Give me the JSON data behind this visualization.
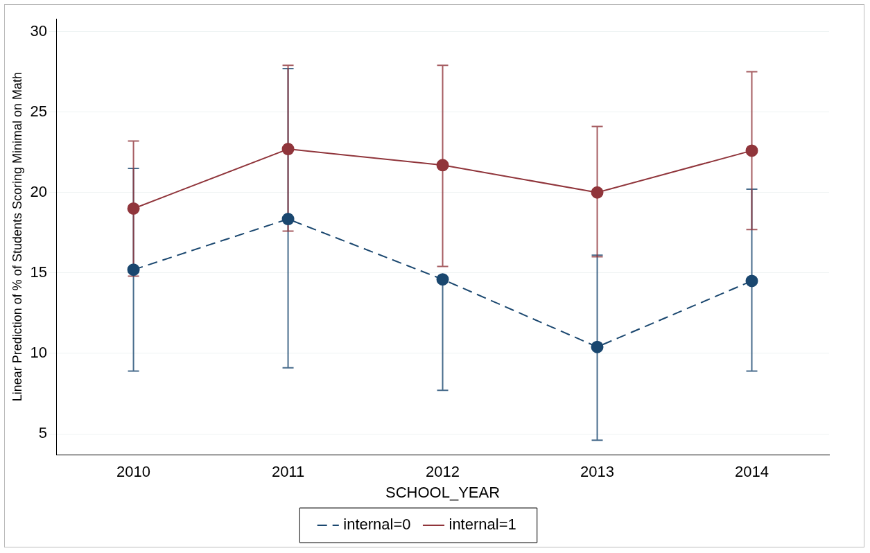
{
  "chart_data": {
    "type": "line",
    "xlabel": "SCHOOL_YEAR",
    "ylabel": "Linear Prediction of % of Students Scoring Minimal on Math",
    "categories": [
      "2010",
      "2011",
      "2012",
      "2013",
      "2014"
    ],
    "series": [
      {
        "name": "internal=0",
        "color": "#1a476f",
        "line_style": "dashed",
        "values": [
          15.2,
          18.35,
          14.6,
          10.4,
          14.5
        ],
        "errors": [
          [
            8.9,
            21.5
          ],
          [
            9.1,
            27.7
          ],
          [
            7.7,
            14.6
          ],
          [
            4.6,
            16.1
          ],
          [
            8.9,
            20.2
          ]
        ]
      },
      {
        "name": "internal=1",
        "color": "#90353b",
        "line_style": "solid",
        "values": [
          19.0,
          22.7,
          21.7,
          20.0,
          22.6
        ],
        "errors": [
          [
            14.8,
            23.2
          ],
          [
            17.6,
            27.9
          ],
          [
            15.4,
            27.9
          ],
          [
            16.0,
            24.1
          ],
          [
            17.7,
            27.5
          ]
        ]
      }
    ],
    "ylim": [
      3.7,
      30.8
    ],
    "yticks": [
      5,
      10,
      15,
      20,
      25,
      30
    ],
    "grid": "y",
    "marker": "circle",
    "legend": "bottom"
  }
}
